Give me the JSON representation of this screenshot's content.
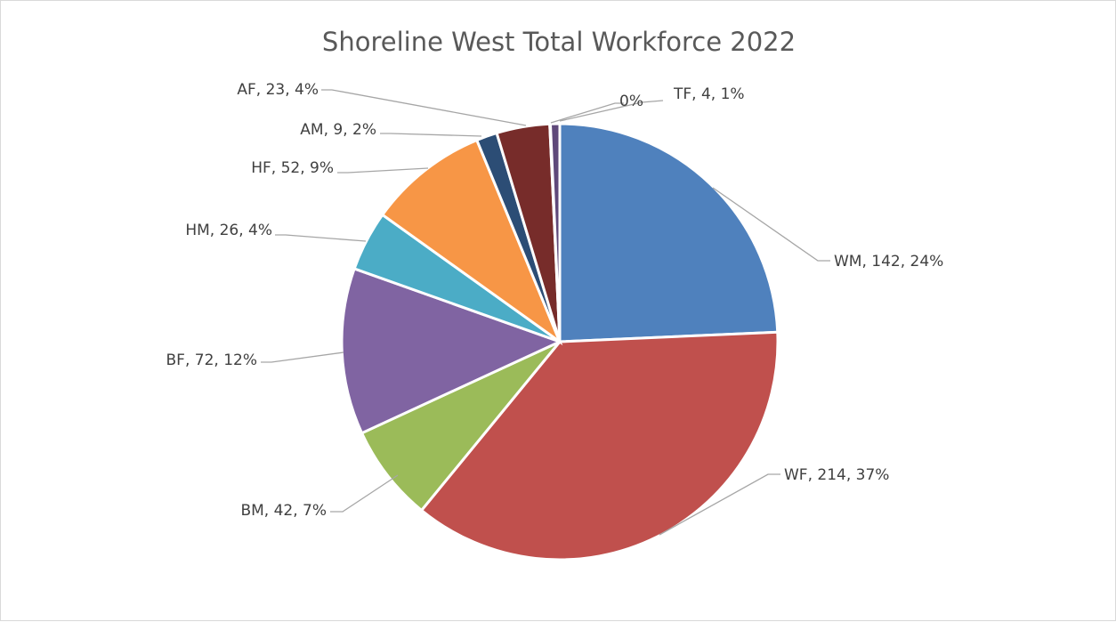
{
  "chart_data": {
    "type": "pie",
    "title": "Shoreline West Total Workforce 2022",
    "slices": [
      {
        "label": "WM",
        "value": 142,
        "percent": "24%",
        "color": "#4f81bd"
      },
      {
        "label": "WF",
        "value": 214,
        "percent": "37%",
        "color": "#c0504d"
      },
      {
        "label": "BM",
        "value": 42,
        "percent": "7%",
        "color": "#9bbb59"
      },
      {
        "label": "BF",
        "value": 72,
        "percent": "12%",
        "color": "#8064a2"
      },
      {
        "label": "HM",
        "value": 26,
        "percent": "4%",
        "color": "#4bacc6"
      },
      {
        "label": "HF",
        "value": 52,
        "percent": "9%",
        "color": "#f79646"
      },
      {
        "label": "AM",
        "value": 9,
        "percent": "2%",
        "color": "#2c4d75"
      },
      {
        "label": "AF",
        "value": 23,
        "percent": "4%",
        "color": "#772c2a"
      },
      {
        "label": "",
        "value": 0.3,
        "percent": "0%",
        "color": "#5f497a"
      },
      {
        "label": "TF",
        "value": 4,
        "percent": "1%",
        "color": "#5f497a"
      }
    ],
    "labels": [
      "WM, 142, 24%",
      "WF, 214, 37%",
      "BM, 42, 7%",
      "BF, 72, 12%",
      "HM, 26, 4%",
      "HF, 52, 9%",
      "AM, 9, 2%",
      "AF, 23, 4%",
      "0%",
      "TF, 4, 1%"
    ]
  }
}
